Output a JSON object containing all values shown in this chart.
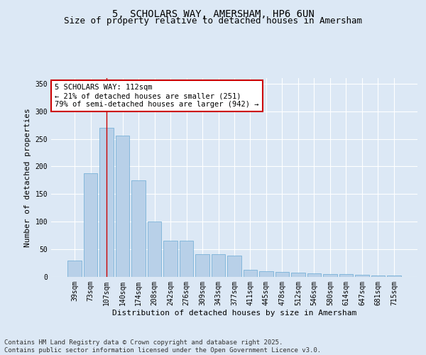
{
  "title_line1": "5, SCHOLARS WAY, AMERSHAM, HP6 6UN",
  "title_line2": "Size of property relative to detached houses in Amersham",
  "xlabel": "Distribution of detached houses by size in Amersham",
  "ylabel": "Number of detached properties",
  "categories": [
    "39sqm",
    "73sqm",
    "107sqm",
    "140sqm",
    "174sqm",
    "208sqm",
    "242sqm",
    "276sqm",
    "309sqm",
    "343sqm",
    "377sqm",
    "411sqm",
    "445sqm",
    "478sqm",
    "512sqm",
    "546sqm",
    "580sqm",
    "614sqm",
    "647sqm",
    "681sqm",
    "715sqm"
  ],
  "values": [
    30,
    188,
    270,
    256,
    175,
    100,
    65,
    65,
    41,
    41,
    38,
    13,
    10,
    9,
    8,
    6,
    5,
    5,
    4,
    2,
    2
  ],
  "bar_color": "#b8d0e8",
  "bar_edge_color": "#6aaad4",
  "highlight_index": 2,
  "highlight_line_color": "#cc0000",
  "vline_x": 2,
  "annotation_text": "5 SCHOLARS WAY: 112sqm\n← 21% of detached houses are smaller (251)\n79% of semi-detached houses are larger (942) →",
  "annotation_box_color": "#ffffff",
  "annotation_box_edge_color": "#cc0000",
  "ylim": [
    0,
    360
  ],
  "yticks": [
    0,
    50,
    100,
    150,
    200,
    250,
    300,
    350
  ],
  "background_color": "#dce8f5",
  "grid_color": "#ffffff",
  "footer_line1": "Contains HM Land Registry data © Crown copyright and database right 2025.",
  "footer_line2": "Contains public sector information licensed under the Open Government Licence v3.0.",
  "title_fontsize": 10,
  "subtitle_fontsize": 9,
  "axis_label_fontsize": 8,
  "tick_fontsize": 7,
  "annotation_fontsize": 7.5,
  "footer_fontsize": 6.5
}
